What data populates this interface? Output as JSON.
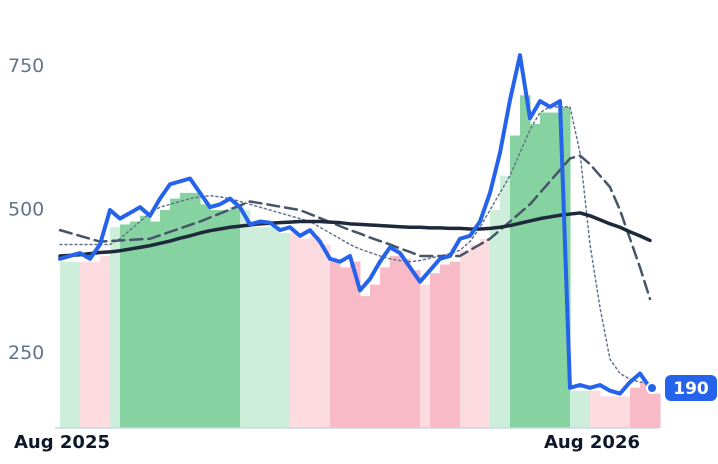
{
  "chart_data": {
    "type": "line",
    "categories": [
      "Aug 2025",
      null,
      null,
      null,
      null,
      null,
      null,
      null,
      null,
      null,
      null,
      null,
      null,
      null,
      null,
      null,
      null,
      null,
      null,
      null,
      null,
      null,
      null,
      null,
      null,
      null,
      null,
      null,
      null,
      null,
      null,
      null,
      null,
      null,
      null,
      null,
      null,
      null,
      null,
      null,
      null,
      null,
      null,
      null,
      null,
      null,
      null,
      null,
      null,
      null,
      null,
      null,
      null,
      "Aug 2026",
      null,
      null,
      null,
      null,
      null,
      null
    ],
    "series": [
      {
        "color": "#2563eb",
        "style": "solid",
        "width": 4,
        "values": [
          415,
          420,
          425,
          415,
          440,
          500,
          485,
          495,
          505,
          490,
          520,
          545,
          550,
          555,
          530,
          505,
          510,
          520,
          505,
          475,
          480,
          478,
          465,
          470,
          455,
          465,
          445,
          415,
          410,
          420,
          360,
          380,
          410,
          435,
          425,
          400,
          375,
          395,
          415,
          420,
          450,
          455,
          480,
          530,
          600,
          692,
          770,
          660,
          690,
          680,
          690,
          190,
          195,
          190,
          195,
          185,
          180,
          200,
          215,
          190
        ]
      },
      {
        "color": "#1e293b",
        "style": "solid",
        "width": 3.5,
        "values": [
          420,
          421,
          422,
          424,
          426,
          427,
          429,
          432,
          435,
          438,
          442,
          446,
          451,
          455,
          460,
          464,
          467,
          470,
          472,
          474,
          476,
          477,
          478,
          479,
          480,
          480,
          480,
          479,
          478,
          476,
          475,
          474,
          473,
          472,
          471,
          470,
          470,
          469,
          469,
          468,
          468,
          467,
          467,
          468,
          470,
          473,
          477,
          481,
          485,
          488,
          491,
          493,
          495,
          490,
          483,
          476,
          470,
          462,
          455,
          447
        ]
      },
      {
        "color": "#475569",
        "style": "dashed",
        "width": 2.5,
        "values": [
          465,
          460,
          455,
          450,
          445,
          446,
          447,
          448,
          449,
          450,
          456,
          462,
          468,
          474,
          480,
          487,
          494,
          501,
          508,
          515,
          512,
          509,
          506,
          503,
          500,
          493,
          486,
          479,
          472,
          465,
          459,
          452,
          446,
          440,
          433,
          427,
          420,
          420,
          420,
          420,
          420,
          430,
          440,
          450,
          465,
          480,
          495,
          510,
          530,
          550,
          570,
          590,
          595,
          580,
          560,
          540,
          500,
          450,
          400,
          345
        ]
      },
      {
        "color": "#64748b",
        "style": "dotted",
        "width": 1.5,
        "values": [
          440,
          440,
          440,
          440,
          440,
          440,
          450,
          465,
          480,
          495,
          505,
          510,
          515,
          520,
          523,
          525,
          523,
          520,
          515,
          510,
          505,
          500,
          495,
          490,
          485,
          480,
          470,
          460,
          450,
          440,
          432,
          426,
          420,
          415,
          412,
          410,
          412,
          416,
          420,
          424,
          430,
          445,
          470,
          500,
          530,
          560,
          600,
          640,
          670,
          680,
          680,
          680,
          600,
          440,
          330,
          240,
          215,
          205,
          200,
          200
        ]
      }
    ],
    "bars": {
      "values": [
        410,
        410,
        410,
        410,
        420,
        470,
        475,
        480,
        490,
        480,
        500,
        520,
        530,
        530,
        510,
        500,
        500,
        505,
        500,
        470,
        470,
        470,
        460,
        460,
        450,
        455,
        440,
        410,
        400,
        410,
        350,
        370,
        400,
        420,
        415,
        395,
        370,
        390,
        405,
        410,
        430,
        440,
        450,
        500,
        560,
        630,
        700,
        650,
        670,
        670,
        680,
        185,
        185,
        185,
        175,
        175,
        175,
        190,
        200,
        180
      ],
      "colors": [
        "#cdeedb",
        "#cdeedb",
        "#fcdbe1",
        "#fcdbe1",
        "#fcdbe1",
        "#cdeedb",
        "#86d3a1",
        "#86d3a1",
        "#86d3a1",
        "#86d3a1",
        "#86d3a1",
        "#86d3a1",
        "#86d3a1",
        "#86d3a1",
        "#86d3a1",
        "#86d3a1",
        "#86d3a1",
        "#86d3a1",
        "#cdeedb",
        "#cdeedb",
        "#cdeedb",
        "#cdeedb",
        "#cdeedb",
        "#fcdbe1",
        "#fcdbe1",
        "#fcdbe1",
        "#fcdbe1",
        "#f8bac6",
        "#f8bac6",
        "#f8bac6",
        "#f8bac6",
        "#f8bac6",
        "#f8bac6",
        "#f8bac6",
        "#f8bac6",
        "#f8bac6",
        "#fcdbe1",
        "#f8bac6",
        "#f8bac6",
        "#f8bac6",
        "#fcdbe1",
        "#fcdbe1",
        "#fcdbe1",
        "#cdeedb",
        "#cdeedb",
        "#86d3a1",
        "#86d3a1",
        "#86d3a1",
        "#86d3a1",
        "#86d3a1",
        "#86d3a1",
        "#cdeedb",
        "#cdeedb",
        "#fcdbe1",
        "#fcdbe1",
        "#fcdbe1",
        "#fcdbe1",
        "#f8bac6",
        "#f8bac6",
        "#f8bac6"
      ]
    },
    "ylim": [
      120,
      800
    ],
    "yticks": [
      250,
      500,
      750
    ],
    "grid": false
  }
}
